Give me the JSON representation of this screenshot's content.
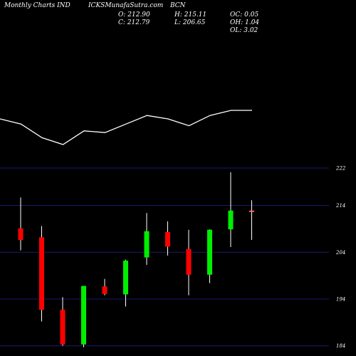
{
  "header": {
    "left_title": "Monthly Charts IND",
    "site": "ICKSMunafaSutra.com",
    "symbol": "BCN",
    "o_label": "O: 212.90",
    "h_label": "H: 215.11",
    "oc_label": "OC: 0.05",
    "c_label": "C: 212.79",
    "l_label": "L: 206.65",
    "oh_label": "OH: 1.04",
    "ol_label": "OL: 3.02"
  },
  "colors": {
    "up": "#00ee00",
    "down": "#ff0000",
    "neutral": "#ff6666",
    "grid": "#1a1a6e",
    "wick": "#ffffff",
    "line": "#ffffff"
  },
  "chart_data": {
    "type": "candlestick",
    "yticks": [
      "222",
      "214",
      "204",
      "194",
      "184"
    ],
    "ytick_values": [
      222,
      214,
      204,
      194,
      184
    ],
    "ylim": [
      183.5,
      222.3
    ],
    "candles": [
      {
        "open": 209.1,
        "high": 215.7,
        "low": 204.4,
        "close": 206.6,
        "dir": "down"
      },
      {
        "open": 207.2,
        "high": 209.6,
        "low": 189.2,
        "close": 191.7,
        "dir": "down"
      },
      {
        "open": 191.7,
        "high": 194.4,
        "low": 184.0,
        "close": 184.3,
        "dir": "down"
      },
      {
        "open": 184.3,
        "high": 196.8,
        "low": 183.7,
        "close": 196.8,
        "dir": "up"
      },
      {
        "open": 196.7,
        "high": 198.3,
        "low": 194.8,
        "close": 195.1,
        "dir": "down"
      },
      {
        "open": 195.0,
        "high": 202.4,
        "low": 192.4,
        "close": 202.2,
        "dir": "up"
      },
      {
        "open": 202.9,
        "high": 212.4,
        "low": 201.3,
        "close": 208.5,
        "dir": "up"
      },
      {
        "open": 208.3,
        "high": 210.6,
        "low": 203.3,
        "close": 205.2,
        "dir": "down"
      },
      {
        "open": 204.7,
        "high": 208.8,
        "low": 194.8,
        "close": 199.2,
        "dir": "down"
      },
      {
        "open": 199.2,
        "high": 208.9,
        "low": 197.4,
        "close": 208.8,
        "dir": "up"
      },
      {
        "open": 208.9,
        "high": 221.1,
        "low": 205.1,
        "close": 212.9,
        "dir": "up"
      },
      {
        "open": 212.9,
        "high": 215.11,
        "low": 206.65,
        "close": 212.79,
        "dir": "neutral"
      }
    ],
    "line": [
      0.4,
      0.34,
      0.18,
      0.1,
      0.26,
      0.24,
      0.34,
      0.44,
      0.4,
      0.32,
      0.44,
      0.5,
      0.5
    ],
    "grid": true
  }
}
